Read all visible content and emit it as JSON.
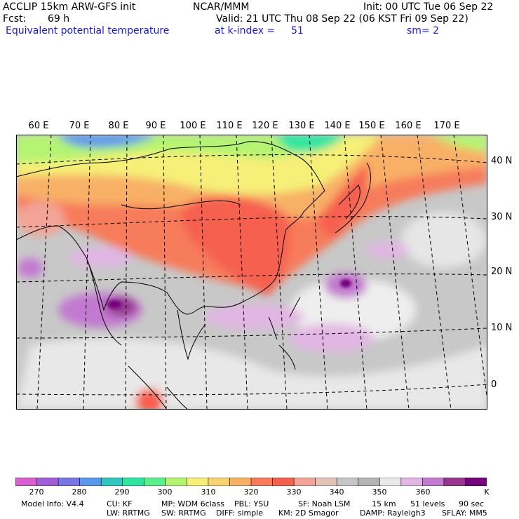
{
  "header": {
    "model": "ACCLIP 15km ARW-GFS init",
    "org": "NCAR/MMM",
    "init": "Init: 00 UTC Tue 06 Sep 22",
    "fcst_label": "Fcst:",
    "fcst_value": "69 h",
    "valid": "Valid: 21 UTC Thu 08 Sep 22 (06 KST Fri 09 Sep 22)",
    "field": "Equivalent potential temperature",
    "level": "at k-index =",
    "level_value": "51",
    "smoothing": "sm= 2"
  },
  "map": {
    "longitude_labels": [
      "60 E",
      "70 E",
      "80 E",
      "90 E",
      "100 E",
      "110 E",
      "120 E",
      "130 E",
      "140 E",
      "150 E",
      "160 E",
      "170 E"
    ],
    "latitude_labels": [
      "40 N",
      "30 N",
      "20 N",
      "10 N",
      "0"
    ],
    "field_units": "K"
  },
  "colorbar": {
    "unit": "K",
    "tick_labels": [
      "270",
      "280",
      "290",
      "300",
      "310",
      "320",
      "330",
      "340",
      "350",
      "360"
    ],
    "colors": [
      "#d95fd0",
      "#a05fd6",
      "#7b76e6",
      "#5a98ec",
      "#32c6c0",
      "#2fe6a0",
      "#5cf08c",
      "#b4f472",
      "#f6f078",
      "#f8d272",
      "#f8b066",
      "#f77b5c",
      "#f6604f",
      "#f2a496",
      "#e3c3b8",
      "#c6c6c6",
      "#b4b4b4",
      "#eaeaea",
      "#e2b6e4",
      "#c279d0",
      "#96368f",
      "#74047c"
    ]
  },
  "footer": {
    "line1": [
      "Model Info: V4.4",
      "CU: KF",
      "MP: WDM 6class",
      "PBL: YSU",
      "SF: Noah LSM",
      "15 km",
      "51 levels",
      "90 sec"
    ],
    "line2": [
      "LW: RRTMG",
      "SW: RRTMG",
      "DIFF: simple",
      "KM: 2D Smagor",
      "DAMP: Rayleigh3",
      "SFLAY: MM5"
    ]
  }
}
